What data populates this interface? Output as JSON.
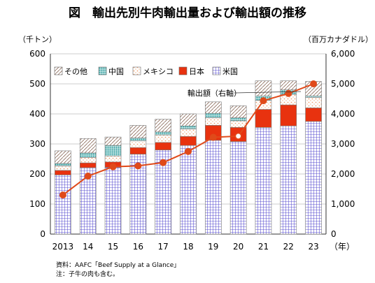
{
  "title": "図　輸出先別牛肉輸出量および輸出額の推移",
  "left_unit": "（千トン）",
  "right_unit": "（百万カナダドル）",
  "x_unit": "（年）",
  "annotation": "輸出額（右軸）",
  "source": "資料：AAFC「Beef Supply at a Glance」",
  "note": "注：子牛の肉も含む。",
  "colors": {
    "us": "#6a5acd",
    "japan": "#e8320f",
    "mexico": "#f3c79f",
    "china": "#3aa5a5",
    "other": "#b88c7c",
    "line": "#e04a1a"
  },
  "chart_data": {
    "type": "bar",
    "stacked": true,
    "categories": [
      "2013",
      "14",
      "15",
      "16",
      "17",
      "18",
      "19",
      "20",
      "21",
      "22",
      "23"
    ],
    "ylim": [
      0,
      600
    ],
    "y2lim": [
      0,
      6000
    ],
    "yticks": [
      "0",
      "100",
      "200",
      "300",
      "400",
      "500",
      "600"
    ],
    "y2ticks": [
      "0",
      "1,000",
      "2,000",
      "3,000",
      "4,000",
      "5,000",
      "6,000"
    ],
    "legend_position": "top-left",
    "series": [
      {
        "name": "米国",
        "key": "us",
        "values": [
          197,
          221,
          222,
          266,
          280,
          295,
          312,
          308,
          355,
          360,
          375
        ]
      },
      {
        "name": "日本",
        "key": "japan",
        "values": [
          15,
          16,
          18,
          22,
          25,
          30,
          50,
          47,
          60,
          70,
          45
        ]
      },
      {
        "name": "メキシコ",
        "key": "mexico",
        "values": [
          15,
          18,
          20,
          22,
          25,
          25,
          25,
          22,
          30,
          35,
          35
        ]
      },
      {
        "name": "中国",
        "key": "china",
        "values": [
          8,
          15,
          35,
          10,
          10,
          10,
          15,
          10,
          15,
          15,
          5
        ]
      },
      {
        "name": "その他",
        "key": "other",
        "values": [
          42,
          48,
          28,
          42,
          42,
          40,
          38,
          40,
          50,
          30,
          48
        ]
      }
    ],
    "line": {
      "name": "輸出額",
      "axis": "right",
      "values": [
        1300,
        1930,
        2240,
        2270,
        2380,
        2750,
        3220,
        3260,
        4440,
        4680,
        5000
      ]
    }
  }
}
